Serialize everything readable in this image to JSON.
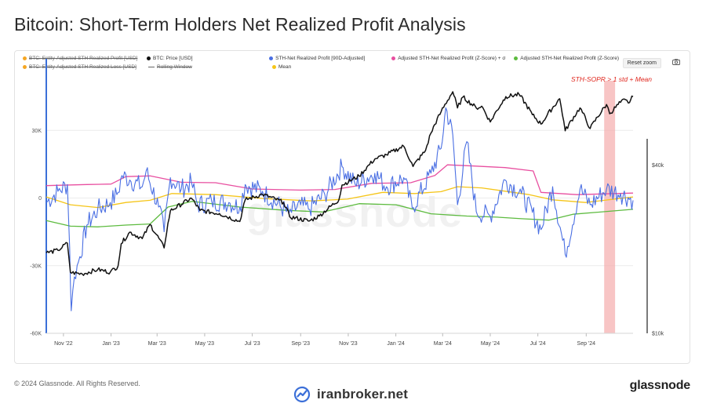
{
  "page": {
    "title": "Bitcoin: Short-Term Holders Net Realized Profit Analysis",
    "copyright": "© 2024 Glassnode. All Rights Reserved.",
    "footer_site": "iranbroker.net",
    "footer_logo": "glassnode",
    "watermark": "glassnode",
    "reset_zoom": "Reset zoom",
    "highlight_label": "STH-SOPR > 1 std + Mean"
  },
  "chart_data": {
    "type": "line",
    "title": "Bitcoin: Short-Term Holders Net Realized Profit Analysis",
    "x_range": [
      "2022-10-10",
      "2024-10-31"
    ],
    "x_ticks": [
      "Nov '22",
      "Jan '23",
      "Mar '23",
      "May '23",
      "Jul '23",
      "Sep '23",
      "Nov '23",
      "Jan '24",
      "Mar '24",
      "May '24",
      "Jul '24",
      "Sep '24"
    ],
    "y_left": {
      "ticks": [
        30000,
        0,
        -30000,
        -60000
      ],
      "tick_labels": [
        "30K",
        "0",
        "-30K",
        "-60K"
      ],
      "range": [
        -60000,
        52000
      ]
    },
    "y_right": {
      "scale": "log",
      "ticks": [
        40000,
        10000
      ],
      "tick_labels": [
        "$40k",
        "$10k"
      ],
      "range": [
        10000,
        80000
      ]
    },
    "highlight": {
      "from": "2024-09-24",
      "to": "2024-10-08",
      "color": "#f4a6a6",
      "label": "STH-SOPR > 1 std + Mean"
    },
    "legend": [
      {
        "name": "BTC: Entity-Adjusted STH Realized Profit [USD]",
        "color": "#f5a623",
        "visible": false
      },
      {
        "name": "BTC: Price [USD]",
        "color": "#111111",
        "visible": true
      },
      {
        "name": "STH-Net Realized Profit [90D-Adjusted]",
        "color": "#4a6fe3",
        "visible": true
      },
      {
        "name": "Adjusted STH-Net Realized Profit (Z-Score) + σ",
        "color": "#e84fa0",
        "visible": true
      },
      {
        "name": "Adjusted STH-Net Realized Profit (Z-Score)",
        "color": "#5dbb3f",
        "visible": true
      },
      {
        "name": "BTC: Entity-Adjusted STH Realized Loss [USD]",
        "color": "#f5a623",
        "visible": false
      },
      {
        "name": "Rolling Window",
        "color": "#777777",
        "visible": false,
        "shape": "line"
      },
      {
        "name": "Mean",
        "color": "#f5c518",
        "visible": true
      }
    ],
    "series": [
      {
        "name": "BTC: Price [USD]",
        "axis": "right",
        "color": "#111111",
        "points": [
          [
            "2022-10-10",
            19400
          ],
          [
            "2022-10-25",
            19800
          ],
          [
            "2022-11-06",
            21000
          ],
          [
            "2022-11-10",
            16500
          ],
          [
            "2022-11-25",
            16300
          ],
          [
            "2022-12-15",
            16900
          ],
          [
            "2022-12-31",
            16550
          ],
          [
            "2023-01-10",
            17400
          ],
          [
            "2023-01-14",
            20900
          ],
          [
            "2023-01-25",
            23000
          ],
          [
            "2023-02-10",
            21800
          ],
          [
            "2023-02-20",
            24500
          ],
          [
            "2023-03-10",
            20200
          ],
          [
            "2023-03-18",
            27400
          ],
          [
            "2023-04-14",
            30400
          ],
          [
            "2023-04-25",
            27500
          ],
          [
            "2023-05-20",
            26800
          ],
          [
            "2023-06-15",
            25100
          ],
          [
            "2023-06-22",
            30000
          ],
          [
            "2023-07-14",
            31400
          ],
          [
            "2023-08-10",
            29400
          ],
          [
            "2023-08-18",
            26100
          ],
          [
            "2023-09-12",
            25200
          ],
          [
            "2023-09-25",
            26300
          ],
          [
            "2023-10-20",
            30000
          ],
          [
            "2023-10-24",
            33900
          ],
          [
            "2023-11-15",
            36500
          ],
          [
            "2023-12-05",
            42000
          ],
          [
            "2023-12-20",
            43500
          ],
          [
            "2024-01-11",
            46700
          ],
          [
            "2024-01-23",
            39500
          ],
          [
            "2024-02-08",
            45000
          ],
          [
            "2024-02-15",
            52000
          ],
          [
            "2024-02-28",
            62000
          ],
          [
            "2024-03-14",
            73100
          ],
          [
            "2024-03-20",
            64000
          ],
          [
            "2024-03-27",
            70000
          ],
          [
            "2024-04-13",
            64000
          ],
          [
            "2024-04-20",
            64900
          ],
          [
            "2024-05-01",
            57000
          ],
          [
            "2024-05-21",
            70200
          ],
          [
            "2024-06-07",
            71500
          ],
          [
            "2024-06-24",
            60500
          ],
          [
            "2024-07-05",
            56000
          ],
          [
            "2024-07-29",
            69000
          ],
          [
            "2024-08-05",
            53000
          ],
          [
            "2024-08-24",
            64000
          ],
          [
            "2024-09-06",
            54000
          ],
          [
            "2024-09-27",
            65800
          ],
          [
            "2024-10-01",
            61000
          ],
          [
            "2024-10-15",
            67000
          ],
          [
            "2024-10-21",
            68500
          ],
          [
            "2024-10-25",
            66600
          ],
          [
            "2024-10-31",
            70200
          ]
        ]
      },
      {
        "name": "STH-Net Realized Profit [90D-Adjusted]",
        "axis": "left",
        "color": "#4a6fe3",
        "points": [
          [
            "2022-10-10",
            -2000
          ],
          [
            "2022-10-25",
            3000
          ],
          [
            "2022-11-06",
            6000
          ],
          [
            "2022-11-09",
            -22000
          ],
          [
            "2022-11-11",
            -50000
          ],
          [
            "2022-11-15",
            -35000
          ],
          [
            "2022-11-22",
            -26000
          ],
          [
            "2022-12-01",
            -12000
          ],
          [
            "2022-12-15",
            -5000
          ],
          [
            "2022-12-31",
            -2000
          ],
          [
            "2023-01-10",
            2500
          ],
          [
            "2023-01-15",
            10000
          ],
          [
            "2023-01-25",
            8000
          ],
          [
            "2023-02-10",
            5000
          ],
          [
            "2023-02-15",
            12000
          ],
          [
            "2023-03-03",
            -4000
          ],
          [
            "2023-03-10",
            -15000
          ],
          [
            "2023-03-18",
            9000
          ],
          [
            "2023-04-01",
            4000
          ],
          [
            "2023-04-14",
            7000
          ],
          [
            "2023-04-22",
            -3000
          ],
          [
            "2023-05-10",
            -1500
          ],
          [
            "2023-06-01",
            -2000
          ],
          [
            "2023-06-15",
            -4000
          ],
          [
            "2023-06-22",
            6000
          ],
          [
            "2023-07-14",
            3000
          ],
          [
            "2023-08-17",
            -7000
          ],
          [
            "2023-09-01",
            -3000
          ],
          [
            "2023-09-11",
            -5000
          ],
          [
            "2023-10-02",
            1500
          ],
          [
            "2023-10-24",
            14000
          ],
          [
            "2023-11-10",
            6000
          ],
          [
            "2023-12-05",
            11000
          ],
          [
            "2023-12-20",
            5000
          ],
          [
            "2024-01-11",
            9000
          ],
          [
            "2024-01-22",
            -4500
          ],
          [
            "2024-02-15",
            11000
          ],
          [
            "2024-02-28",
            22000
          ],
          [
            "2024-03-05",
            40000
          ],
          [
            "2024-03-14",
            28000
          ],
          [
            "2024-03-20",
            -3000
          ],
          [
            "2024-04-01",
            25000
          ],
          [
            "2024-04-13",
            -6000
          ],
          [
            "2024-05-01",
            -8000
          ],
          [
            "2024-05-20",
            8000
          ],
          [
            "2024-06-10",
            2000
          ],
          [
            "2024-07-05",
            -14000
          ],
          [
            "2024-07-20",
            5000
          ],
          [
            "2024-08-05",
            -25000
          ],
          [
            "2024-08-24",
            4000
          ],
          [
            "2024-09-06",
            -3000
          ],
          [
            "2024-09-27",
            4000
          ],
          [
            "2024-10-15",
            2000
          ],
          [
            "2024-10-31",
            -1000
          ]
        ]
      },
      {
        "name": "Adjusted STH-Net Realized Profit (Z-Score) + σ",
        "axis": "left",
        "color": "#e84fa0",
        "points": [
          [
            "2022-10-10",
            5500
          ],
          [
            "2022-12-01",
            6000
          ],
          [
            "2023-01-01",
            6200
          ],
          [
            "2023-01-20",
            9500
          ],
          [
            "2023-02-20",
            9800
          ],
          [
            "2023-04-01",
            7000
          ],
          [
            "2023-05-15",
            6800
          ],
          [
            "2023-07-01",
            4000
          ],
          [
            "2023-09-01",
            3500
          ],
          [
            "2023-10-15",
            3800
          ],
          [
            "2023-12-01",
            6500
          ],
          [
            "2024-01-20",
            6800
          ],
          [
            "2024-02-20",
            10000
          ],
          [
            "2024-03-07",
            14700
          ],
          [
            "2024-04-10",
            14200
          ],
          [
            "2024-05-20",
            13500
          ],
          [
            "2024-06-25",
            12000
          ],
          [
            "2024-07-05",
            2500
          ],
          [
            "2024-08-20",
            1500
          ],
          [
            "2024-10-31",
            2200
          ]
        ]
      },
      {
        "name": "Mean",
        "axis": "left",
        "color": "#f5c518",
        "points": [
          [
            "2022-10-10",
            500
          ],
          [
            "2022-11-10",
            -3000
          ],
          [
            "2022-12-15",
            -4200
          ],
          [
            "2023-01-20",
            -2000
          ],
          [
            "2023-02-20",
            -1000
          ],
          [
            "2023-03-20",
            2000
          ],
          [
            "2023-05-15",
            1500
          ],
          [
            "2023-07-15",
            -200
          ],
          [
            "2023-09-15",
            -1300
          ],
          [
            "2023-10-31",
            -500
          ],
          [
            "2023-12-15",
            2500
          ],
          [
            "2024-01-25",
            2000
          ],
          [
            "2024-02-28",
            2800
          ],
          [
            "2024-03-20",
            5000
          ],
          [
            "2024-04-20",
            4500
          ],
          [
            "2024-06-20",
            1500
          ],
          [
            "2024-07-20",
            -800
          ],
          [
            "2024-08-31",
            -2000
          ],
          [
            "2024-10-31",
            500
          ]
        ]
      },
      {
        "name": "Adjusted STH-Net Realized Profit (Z-Score)",
        "axis": "left",
        "color": "#5dbb3f",
        "points": [
          [
            "2022-10-10",
            -10000
          ],
          [
            "2022-11-10",
            -12500
          ],
          [
            "2022-12-15",
            -12800
          ],
          [
            "2023-01-20",
            -12000
          ],
          [
            "2023-02-20",
            -11500
          ],
          [
            "2023-03-15",
            -4000
          ],
          [
            "2023-04-15",
            -1500
          ],
          [
            "2023-06-15",
            -4000
          ],
          [
            "2023-08-15",
            -5500
          ],
          [
            "2023-09-30",
            -6200
          ],
          [
            "2023-11-15",
            -2500
          ],
          [
            "2024-01-01",
            -3000
          ],
          [
            "2024-02-15",
            -7000
          ],
          [
            "2024-04-01",
            -8000
          ],
          [
            "2024-05-10",
            -8500
          ],
          [
            "2024-06-10",
            -9200
          ],
          [
            "2024-07-15",
            -9800
          ],
          [
            "2024-08-15",
            -7200
          ],
          [
            "2024-10-31",
            -5000
          ]
        ]
      }
    ]
  }
}
